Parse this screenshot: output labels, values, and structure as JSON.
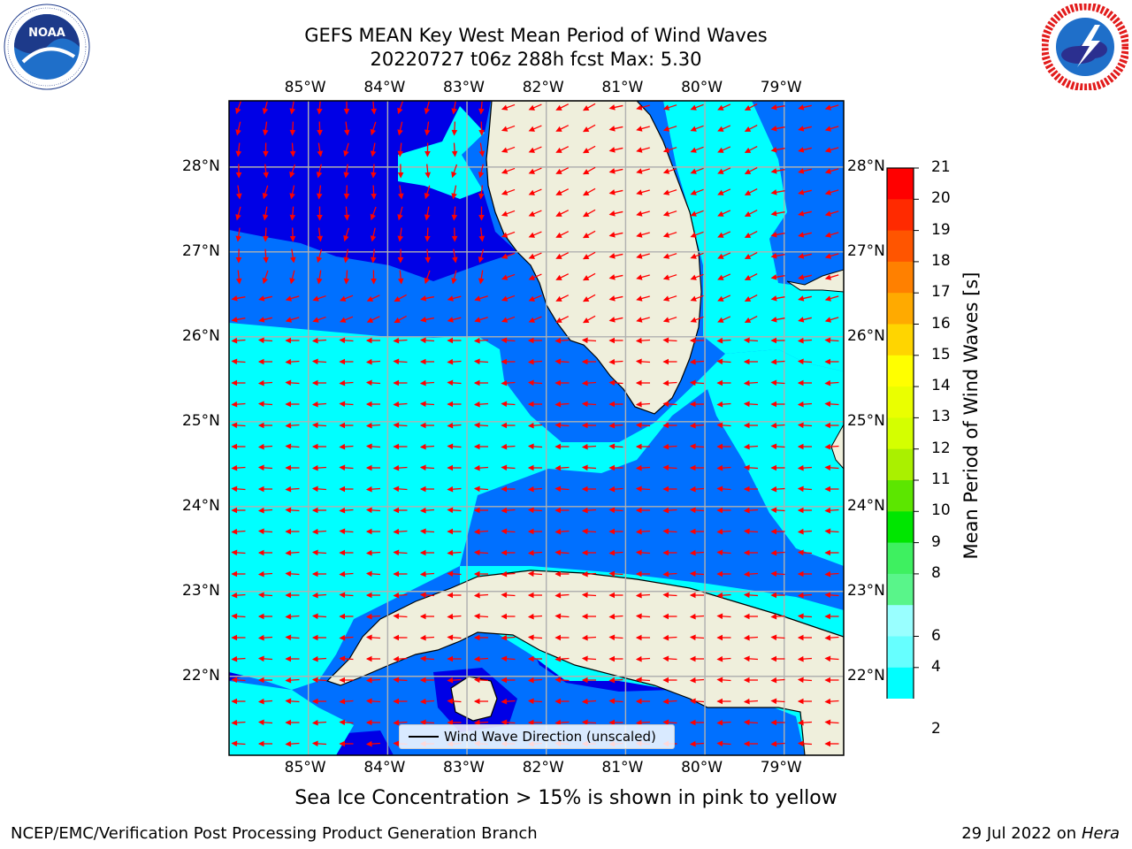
{
  "title": {
    "line1": "GEFS MEAN Key West Mean Period of Wind Waves",
    "line2": "20220727 t06z 288h fcst   Max: 5.30"
  },
  "logos": {
    "left": {
      "name": "noaa-logo",
      "text": "NOAA",
      "ring_text": "NATIONAL OCEANIC AND ATMOSPHERIC ADMINISTRATION · U.S. DEPARTMENT OF COMMERCE"
    },
    "right": {
      "name": "nws-logo",
      "ring_text": "NATIONAL WEATHER SERVICE"
    }
  },
  "map": {
    "lon_ticks": [
      "85°W",
      "84°W",
      "83°W",
      "82°W",
      "81°W",
      "80°W",
      "79°W"
    ],
    "lat_ticks": [
      "28°N",
      "27°N",
      "26°N",
      "25°N",
      "24°N",
      "23°N",
      "22°N"
    ],
    "lon_range": [
      -86.0,
      -78.25
    ],
    "lat_range": [
      21.07,
      28.78
    ],
    "colors": {
      "lt2": "#0000e6",
      "b2_4": "#0070ff",
      "b4_6": "#00ffff",
      "land": "#efefdc",
      "arrow": "#ff0000",
      "grid": "#b0b0b0"
    }
  },
  "legend": {
    "label": "Wind Wave Direction (unscaled)"
  },
  "colorbar": {
    "label": "Mean Period of Wind Waves [s]",
    "ticks": [
      "21",
      "20",
      "19",
      "18",
      "17",
      "16",
      "15",
      "14",
      "13",
      "12",
      "11",
      "10",
      "9",
      "8",
      "6",
      "4",
      "2"
    ],
    "colors": [
      "#ff0000",
      "#ff2a00",
      "#ff5500",
      "#ff8000",
      "#ffaa00",
      "#ffd500",
      "#ffff00",
      "#eaff00",
      "#d4ff00",
      "#aaf000",
      "#5ce600",
      "#00e600",
      "#3ef060",
      "#59f58a",
      "#99ffff",
      "#66ffff",
      "#00ffff",
      "#0070ff"
    ],
    "under_color": "#0000e6"
  },
  "note": "Sea Ice Concentration > 15% is shown in pink to yellow",
  "footer": {
    "left": "NCEP/EMC/Verification Post Processing Product Generation Branch",
    "date": "29 Jul 2022 on",
    "machine": "Hera"
  }
}
